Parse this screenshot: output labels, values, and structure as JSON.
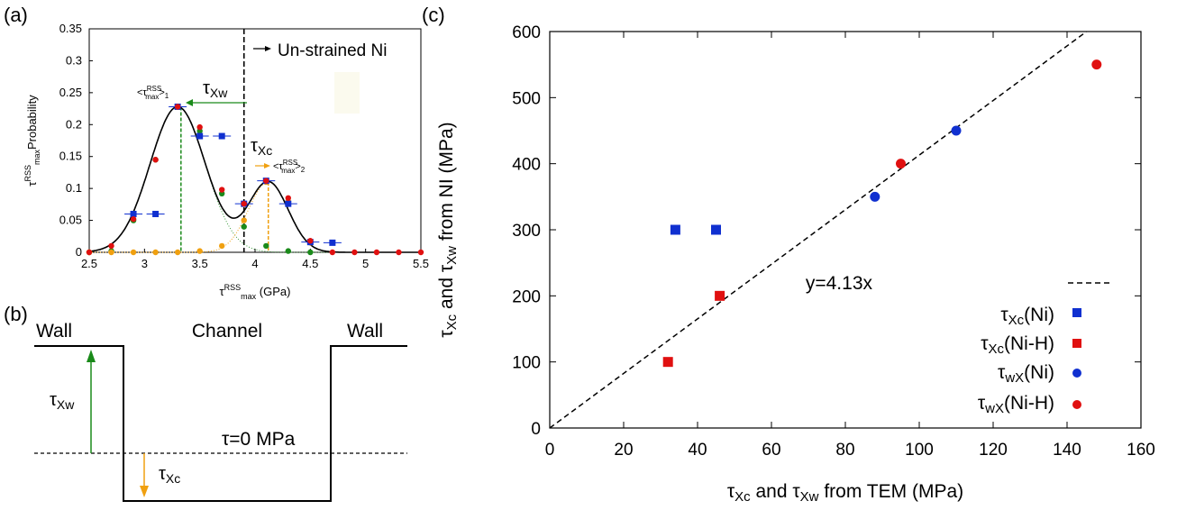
{
  "panels": {
    "a": "(a)",
    "b": "(b)",
    "c": "(c)"
  },
  "colors": {
    "green": "#1a8a1a",
    "orange": "#f0a010",
    "blue": "#1030d0",
    "red": "#e01010",
    "black": "#000000"
  },
  "chart_data": [
    {
      "type": "scatter",
      "panel": "(a)",
      "xlabel": "τ^RSS_max (GPa)",
      "ylabel": "τ^RSS_max Probability",
      "xlim": [
        2.5,
        5.5
      ],
      "ylim": [
        0,
        0.35
      ],
      "xticks": [
        "2.5",
        "3",
        "3.5",
        "4",
        "4.5",
        "5",
        "5.5"
      ],
      "yticks": [
        "0",
        "0.05",
        "0.1",
        "0.15",
        "0.2",
        "0.25",
        "0.3",
        "0.35"
      ],
      "series": [
        {
          "x": [
            2.5,
            2.7,
            2.9,
            3.1,
            3.3,
            3.5,
            3.7,
            3.9,
            4.1,
            4.3,
            4.5,
            4.7,
            4.9,
            5.1,
            5.3,
            5.5
          ],
          "values": [
            0.0,
            0.01,
            0.052,
            0.145,
            0.228,
            0.196,
            0.098,
            0.076,
            0.112,
            0.085,
            0.018,
            0.0,
            0.0,
            0.0,
            0.0,
            0.0
          ]
        },
        {
          "x": [
            2.9,
            3.1,
            3.3,
            3.5,
            3.7,
            3.9,
            4.1,
            4.3,
            4.5,
            4.7
          ],
          "values": [
            0.06,
            0.06,
            0.228,
            0.182,
            0.182,
            0.076,
            0.112,
            0.076,
            0.016,
            0.015
          ]
        },
        {
          "x": [
            2.5,
            2.7,
            2.9,
            3.1,
            3.3,
            3.5,
            3.7,
            3.9,
            4.1,
            4.3,
            4.5
          ],
          "values": [
            0.0,
            0.002,
            0.05,
            0.145,
            0.228,
            0.19,
            0.092,
            0.04,
            0.01,
            0.002,
            0.0
          ]
        },
        {
          "x": [
            2.5,
            2.7,
            2.9,
            3.1,
            3.3,
            3.5,
            3.7,
            3.9,
            4.1,
            4.3,
            4.5
          ],
          "values": [
            0.0,
            0.0,
            0.0,
            0.0,
            0.0,
            0.002,
            0.01,
            0.05,
            0.11,
            0.08,
            0.015
          ]
        }
      ],
      "annotations": {
        "unstrained": "Un-strained Ni",
        "tau_xw": "τXw",
        "tau_xc": "τXc",
        "mean1": "<τ^RSS_max>1",
        "mean2": "<τ^RSS_max>2"
      }
    },
    {
      "type": "diagram",
      "panel": "(b)",
      "labels": {
        "wall_left": "Wall",
        "channel": "Channel",
        "wall_right": "Wall",
        "tau_zero": "τ=0 MPa",
        "tau_xw": "τXw",
        "tau_xc": "τXc"
      }
    },
    {
      "type": "scatter",
      "panel": "(c)",
      "xlabel": "τXc and τXw from TEM (MPa)",
      "ylabel": "τXc and τXw from NI (MPa)",
      "xlim": [
        0,
        160
      ],
      "ylim": [
        0,
        600
      ],
      "xticks": [
        "0",
        "20",
        "40",
        "60",
        "80",
        "100",
        "120",
        "140",
        "160"
      ],
      "yticks": [
        "0",
        "100",
        "200",
        "300",
        "400",
        "500",
        "600"
      ],
      "fit": {
        "label": "y=4.13x",
        "slope": 4.13
      },
      "series": [
        {
          "name": "τXc(Ni)",
          "marker": "square",
          "color": "#1030d0",
          "x": [
            34,
            45
          ],
          "values": [
            300,
            300
          ]
        },
        {
          "name": "τXc(Ni-H)",
          "marker": "square",
          "color": "#e01010",
          "x": [
            32,
            46
          ],
          "values": [
            100,
            200
          ]
        },
        {
          "name": "τwX(Ni)",
          "marker": "circle",
          "color": "#1030d0",
          "x": [
            88,
            110
          ],
          "values": [
            350,
            450
          ]
        },
        {
          "name": "τwX(Ni-H)",
          "marker": "circle",
          "color": "#e01010",
          "x": [
            95,
            148
          ],
          "values": [
            400,
            550
          ]
        }
      ]
    }
  ]
}
